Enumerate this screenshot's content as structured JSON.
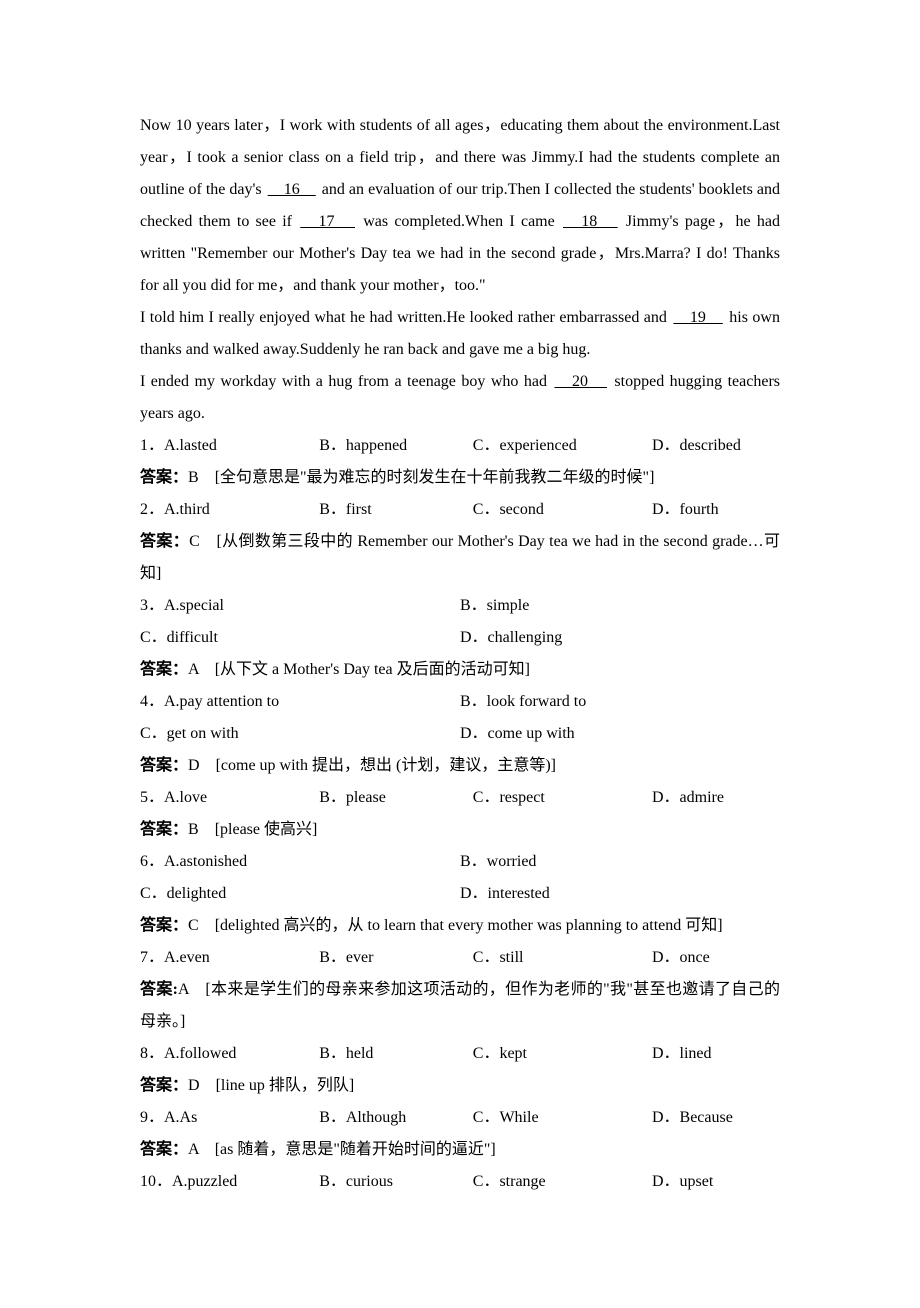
{
  "paragraphs": {
    "p1": "Now 10 years later，I work with students of all ages，educating them about the environment.Last year，I took a senior class on a field trip，and there was Jimmy.I had the students complete an outline of the day's ",
    "b16": "　16　",
    "p1b": " and an evaluation of our trip.Then I collected the students' booklets and checked them to see if ",
    "b17": "　17　",
    "p1c": " was completed.When I came ",
    "b18": "　18　",
    "p1d": " Jimmy's page，he had written \"Remember our Mother's Day tea we had in the second grade，Mrs.Marra? I do! Thanks for all you did for me，and thank your mother，too.\"",
    "p2a": "I told him I really enjoyed what he had written.He looked rather embarrassed and ",
    "b19": "　19　",
    "p2b": " his own thanks and walked away.Suddenly he ran back and gave me a big hug.",
    "p3a": "I ended my workday with a hug from a teenage boy who had ",
    "b20": "　20　",
    "p3b": " stopped hugging teachers years ago."
  },
  "questions": [
    {
      "num": "1．",
      "a": "A.lasted",
      "b": "B．happened",
      "c": "C．experienced",
      "d": "D．described",
      "ansLabel": "答案：",
      "ansLetter": "B",
      "ansText": "　[全句意思是\"最为难忘的时刻发生在十年前我教二年级的时候\"]",
      "layout": "4w"
    },
    {
      "num": "2．",
      "a": "A.third",
      "b": "B．first",
      "c": "C．second",
      "d": "D．fourth",
      "ansLabel": "答案：",
      "ansLetter": "C",
      "ansText": "　[从倒数第三段中的 Remember our Mother's Day tea we had in the second grade…可知]",
      "layout": "4w",
      "multiline": true
    },
    {
      "num": "3．",
      "a": "A.special",
      "b": "B．simple",
      "c": "C．difficult",
      "d": "D．challenging",
      "ansLabel": "答案：",
      "ansLetter": "A",
      "ansText": "　[从下文 a Mother's Day tea 及后面的活动可知]",
      "layout": "2"
    },
    {
      "num": "4．",
      "a": "A.pay attention to",
      "b": "B．look forward to",
      "c": "C．get on with",
      "d": "D．come up with",
      "ansLabel": "答案：",
      "ansLetter": "D",
      "ansText": "　[come up with 提出，想出 (计划，建议，主意等)]",
      "layout": "2"
    },
    {
      "num": "5．",
      "a": "A.love",
      "b": "B．please",
      "c": "C．respect",
      "d": "D．admire",
      "ansLabel": "答案：",
      "ansLetter": "B",
      "ansText": "　[please 使高兴]",
      "layout": "4w"
    },
    {
      "num": "6．",
      "a": "A.astonished",
      "b": "B．worried",
      "c": "C．delighted",
      "d": "D．interested",
      "ansLabel": "答案：",
      "ansLetter": "C",
      "ansText": "　[delighted 高兴的，从 to learn that every mother was planning to attend 可知]",
      "layout": "2"
    },
    {
      "num": "7．",
      "a": "A.even",
      "b": "B．ever",
      "c": "C．still",
      "d": "D．once",
      "ansLabel": "答案:",
      "ansLetter": "A",
      "ansText": "　[本来是学生们的母亲来参加这项活动的，但作为老师的\"我\"甚至也邀请了自己的母亲。]",
      "layout": "4w",
      "multiline": true
    },
    {
      "num": "8．",
      "a": "A.followed",
      "b": "B．held",
      "c": "C．kept",
      "d": "D．lined",
      "ansLabel": "答案：",
      "ansLetter": "D",
      "ansText": "　[line up 排队，列队]",
      "layout": "4w"
    },
    {
      "num": "9．",
      "a": "A.As",
      "b": "B．Although",
      "c": "C．While",
      "d": "D．Because",
      "ansLabel": "答案：",
      "ansLetter": "A",
      "ansText": "　[as 随着，意思是\"随着开始时间的逼近\"]",
      "layout": "4w"
    },
    {
      "num": "10．",
      "a": "A.puzzled",
      "b": "B．curious",
      "c": "C．strange",
      "d": "D．upset",
      "layout": "4w",
      "noAnswer": true
    }
  ]
}
